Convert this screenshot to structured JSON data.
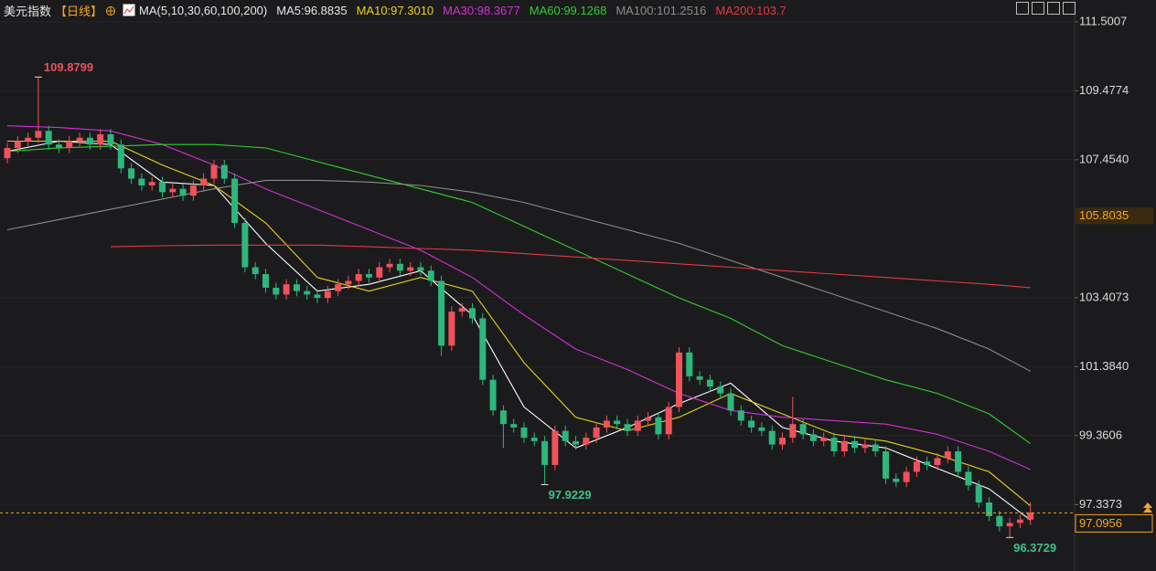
{
  "chart_data": {
    "type": "candlestick",
    "title": "美元指数",
    "subtitle": "【日线】",
    "indicator": "MA(5,10,30,60,100,200)",
    "up_color": "#f0525b",
    "down_color": "#2eb67d",
    "open": [
      107.5,
      107.8,
      108.0,
      108.1,
      108.3,
      107.9,
      107.8,
      108.0,
      108.1,
      107.9,
      108.2,
      107.9,
      107.2,
      106.9,
      106.7,
      106.8,
      106.5,
      106.6,
      106.4,
      106.7,
      106.9,
      107.3,
      106.9,
      105.6,
      104.3,
      104.1,
      103.7,
      103.5,
      103.8,
      103.6,
      103.5,
      103.4,
      103.6,
      103.8,
      103.9,
      104.1,
      104.0,
      104.3,
      104.4,
      104.2,
      104.3,
      104.2,
      103.9,
      102.0,
      103.0,
      103.1,
      102.8,
      101.0,
      100.1,
      99.7,
      99.6,
      99.3,
      99.2,
      98.5,
      99.5,
      99.2,
      99.1,
      99.3,
      99.6,
      99.8,
      99.7,
      99.5,
      99.8,
      99.9,
      99.4,
      100.2,
      101.8,
      101.1,
      101.0,
      100.8,
      100.6,
      100.1,
      99.8,
      99.6,
      99.5,
      99.1,
      99.3,
      99.7,
      99.4,
      99.2,
      99.3,
      98.9,
      99.2,
      99.0,
      99.1,
      98.9,
      98.1,
      98.0,
      98.3,
      98.6,
      98.5,
      98.7,
      98.9,
      98.3,
      97.9,
      97.4,
      97.0,
      96.7,
      96.8,
      96.9
    ],
    "high": [
      107.95,
      108.15,
      108.25,
      109.8799,
      108.45,
      108.05,
      108.15,
      108.25,
      108.25,
      108.35,
      108.35,
      108.05,
      107.35,
      107.05,
      106.95,
      106.95,
      106.75,
      106.75,
      106.85,
      107.05,
      107.45,
      107.45,
      107.05,
      105.75,
      104.45,
      104.25,
      103.85,
      103.95,
      103.95,
      103.75,
      103.65,
      103.75,
      103.95,
      104.05,
      104.25,
      104.25,
      104.45,
      104.55,
      104.55,
      104.45,
      104.45,
      104.35,
      104.05,
      103.15,
      103.25,
      103.25,
      102.95,
      101.15,
      100.25,
      99.85,
      99.75,
      99.45,
      99.35,
      99.65,
      99.65,
      99.35,
      99.45,
      99.75,
      99.95,
      99.95,
      99.85,
      99.95,
      100.05,
      100.05,
      100.35,
      101.95,
      101.95,
      101.25,
      101.15,
      100.95,
      100.75,
      100.25,
      99.95,
      99.75,
      99.65,
      99.45,
      100.5,
      99.85,
      99.55,
      99.45,
      99.45,
      99.35,
      99.35,
      99.25,
      99.25,
      99.05,
      98.25,
      98.45,
      98.75,
      98.75,
      98.85,
      99.05,
      99.05,
      98.45,
      98.05,
      97.55,
      97.15,
      96.95,
      97.05,
      97.4
    ],
    "low": [
      107.35,
      107.65,
      107.85,
      107.95,
      107.75,
      107.65,
      107.65,
      107.85,
      107.75,
      107.75,
      107.75,
      107.05,
      106.75,
      106.55,
      106.55,
      106.35,
      106.35,
      106.25,
      106.25,
      106.55,
      106.75,
      106.75,
      105.45,
      104.15,
      103.95,
      103.55,
      103.35,
      103.35,
      103.45,
      103.35,
      103.25,
      103.25,
      103.45,
      103.65,
      103.75,
      103.85,
      103.85,
      104.15,
      104.05,
      104.05,
      104.05,
      103.75,
      101.7,
      101.85,
      102.85,
      102.65,
      100.85,
      99.95,
      99.0,
      99.45,
      99.15,
      99.05,
      97.9229,
      98.35,
      99.05,
      98.95,
      98.95,
      99.15,
      99.45,
      99.55,
      99.35,
      99.35,
      99.65,
      99.25,
      99.25,
      100.05,
      100.95,
      100.85,
      100.65,
      100.45,
      99.95,
      99.65,
      99.45,
      99.35,
      98.95,
      98.95,
      99.15,
      99.25,
      99.05,
      99.05,
      98.75,
      98.75,
      98.85,
      98.85,
      98.75,
      97.95,
      97.85,
      97.85,
      98.15,
      98.35,
      98.35,
      98.55,
      98.15,
      97.75,
      97.25,
      96.85,
      96.55,
      96.3729,
      96.65,
      96.75
    ],
    "close": [
      107.8,
      108.0,
      108.1,
      108.3,
      107.9,
      107.8,
      108.0,
      108.1,
      107.9,
      108.2,
      107.9,
      107.2,
      106.9,
      106.7,
      106.8,
      106.5,
      106.6,
      106.4,
      106.7,
      106.9,
      107.3,
      106.9,
      105.6,
      104.3,
      104.1,
      103.7,
      103.5,
      103.8,
      103.6,
      103.5,
      103.4,
      103.6,
      103.8,
      103.9,
      104.1,
      104.0,
      104.3,
      104.4,
      104.2,
      104.3,
      104.2,
      103.9,
      102.0,
      103.0,
      103.1,
      102.8,
      101.0,
      100.1,
      99.7,
      99.6,
      99.3,
      99.2,
      98.5,
      99.5,
      99.2,
      99.1,
      99.3,
      99.6,
      99.8,
      99.7,
      99.5,
      99.8,
      99.9,
      99.4,
      100.2,
      101.8,
      101.1,
      101.0,
      100.8,
      100.6,
      100.1,
      99.8,
      99.6,
      99.5,
      99.1,
      99.3,
      99.7,
      99.4,
      99.2,
      99.3,
      98.9,
      99.2,
      99.0,
      99.1,
      98.9,
      98.1,
      98.0,
      98.3,
      98.6,
      98.5,
      98.7,
      98.9,
      98.3,
      97.9,
      97.4,
      97.0,
      96.7,
      96.8,
      96.9,
      97.1
    ],
    "series": [
      {
        "name": "MA5:96.8835",
        "color": "#ffffff",
        "x": [
          0,
          5,
          10,
          15,
          20,
          25,
          30,
          35,
          40,
          45,
          50,
          55,
          60,
          65,
          70,
          75,
          80,
          85,
          90,
          95,
          99
        ],
        "values": [
          107.7,
          108.0,
          107.9,
          106.8,
          106.7,
          105.0,
          103.6,
          103.8,
          104.2,
          102.9,
          100.2,
          99.0,
          99.6,
          100.3,
          100.9,
          99.6,
          99.2,
          99.0,
          98.4,
          97.8,
          96.8835
        ]
      },
      {
        "name": "MA10:97.3010",
        "color": "#e8d21d",
        "x": [
          0,
          5,
          10,
          15,
          20,
          25,
          30,
          35,
          40,
          45,
          50,
          55,
          60,
          65,
          70,
          75,
          80,
          85,
          90,
          95,
          99
        ],
        "values": [
          108.0,
          108.0,
          108.0,
          107.3,
          106.7,
          105.6,
          104.0,
          103.6,
          104.0,
          103.6,
          101.5,
          99.9,
          99.5,
          99.9,
          100.6,
          100.0,
          99.4,
          99.2,
          98.8,
          98.3,
          97.301
        ]
      },
      {
        "name": "MA30:98.3677",
        "color": "#d62fd6",
        "x": [
          0,
          5,
          10,
          15,
          20,
          25,
          30,
          35,
          40,
          45,
          50,
          55,
          60,
          65,
          70,
          75,
          80,
          85,
          90,
          95,
          99
        ],
        "values": [
          108.45,
          108.4,
          108.3,
          107.9,
          107.3,
          106.6,
          106.0,
          105.4,
          104.8,
          104.0,
          102.9,
          101.9,
          101.3,
          100.6,
          100.1,
          99.9,
          99.8,
          99.7,
          99.4,
          98.9,
          98.3677
        ]
      },
      {
        "name": "MA60:99.1268",
        "color": "#2fcf2f",
        "x": [
          0,
          5,
          10,
          15,
          20,
          25,
          30,
          35,
          40,
          45,
          50,
          55,
          60,
          65,
          70,
          75,
          80,
          85,
          90,
          95,
          99
        ],
        "values": [
          107.7,
          107.8,
          107.85,
          107.9,
          107.9,
          107.8,
          107.4,
          107.0,
          106.6,
          106.2,
          105.5,
          104.8,
          104.1,
          103.4,
          102.8,
          102.0,
          101.5,
          101.0,
          100.6,
          100.0,
          99.1268
        ]
      },
      {
        "name": "MA100:101.2516",
        "color": "#8c8c8c",
        "x": [
          0,
          5,
          10,
          15,
          20,
          25,
          30,
          35,
          40,
          45,
          50,
          55,
          60,
          65,
          70,
          75,
          80,
          85,
          90,
          95,
          99
        ],
        "values": [
          105.4,
          105.7,
          106.0,
          106.3,
          106.6,
          106.85,
          106.85,
          106.8,
          106.7,
          106.5,
          106.2,
          105.8,
          105.4,
          105.0,
          104.5,
          104.0,
          103.5,
          103.0,
          102.5,
          101.9,
          101.2516
        ]
      },
      {
        "name": "MA200:103.7",
        "color": "#e8383d",
        "x": [
          0,
          5,
          10,
          15,
          20,
          25,
          30,
          35,
          40,
          45,
          50,
          55,
          60,
          65,
          70,
          75,
          80,
          85,
          90,
          95,
          99
        ],
        "values": [
          null,
          null,
          104.9,
          104.93,
          104.95,
          104.95,
          104.95,
          104.9,
          104.85,
          104.8,
          104.7,
          104.6,
          104.5,
          104.4,
          104.3,
          104.2,
          104.1,
          104.0,
          103.9,
          103.8,
          103.7
        ]
      }
    ],
    "ylim": [
      95.39,
      112.14
    ],
    "yticks": [
      111.5007,
      109.4774,
      {
        "value": 107.454,
        "label": "107.4540"
      },
      103.4073,
      {
        "value": 101.384,
        "label": "101.3840"
      },
      99.3606,
      97.3373
    ],
    "price_marker": 105.8035,
    "last_price": 97.0956,
    "marker_color": "#f5a623",
    "grid": true
  }
}
